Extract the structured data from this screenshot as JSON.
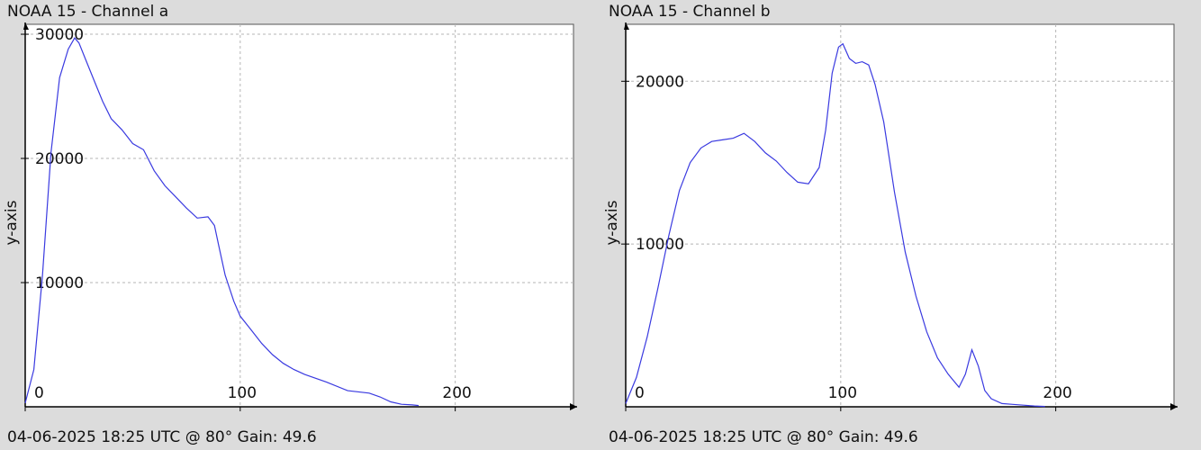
{
  "chart_data": [
    {
      "type": "line",
      "title": "NOAA 15 - Channel a",
      "footer": "04-06-2025 18:25 UTC @ 80° Gain: 49.6",
      "xlabel": "",
      "ylabel": "y-axis",
      "xlim": [
        0,
        255
      ],
      "ylim": [
        0,
        30800
      ],
      "xticks": [
        0,
        100,
        200
      ],
      "yticks": [
        10000,
        20000,
        30000
      ],
      "grid": true,
      "line_color": "#3a3ae0",
      "series": [
        {
          "x": [
            0,
            4,
            8,
            12,
            16,
            20,
            23,
            25,
            28,
            32,
            36,
            40,
            45,
            50,
            55,
            60,
            65,
            70,
            75,
            80,
            85,
            88,
            90,
            93,
            97,
            100,
            105,
            110,
            115,
            120,
            125,
            130,
            140,
            150,
            160,
            165,
            170,
            175,
            180,
            183
          ],
          "y": [
            300,
            3000,
            10500,
            20500,
            26500,
            28800,
            29700,
            29300,
            28000,
            26300,
            24600,
            23200,
            22300,
            21200,
            20700,
            19000,
            17800,
            16900,
            16000,
            15200,
            15300,
            14600,
            13000,
            10600,
            8500,
            7300,
            6200,
            5100,
            4200,
            3500,
            3000,
            2600,
            2000,
            1300,
            1100,
            800,
            400,
            200,
            150,
            100
          ]
        }
      ]
    },
    {
      "type": "line",
      "title": "NOAA 15 - Channel b",
      "footer": "04-06-2025 18:25 UTC @ 80° Gain: 49.6",
      "xlabel": "",
      "ylabel": "y-axis",
      "xlim": [
        0,
        255
      ],
      "ylim": [
        0,
        23500
      ],
      "xticks": [
        0,
        100,
        200
      ],
      "yticks": [
        10000,
        20000
      ],
      "grid": true,
      "line_color": "#3a3ae0",
      "series": [
        {
          "x": [
            0,
            5,
            10,
            15,
            20,
            25,
            30,
            35,
            40,
            45,
            50,
            55,
            60,
            65,
            70,
            75,
            80,
            85,
            90,
            93,
            96,
            99,
            101,
            104,
            107,
            110,
            113,
            116,
            120,
            125,
            130,
            135,
            140,
            145,
            150,
            155,
            158,
            161,
            164,
            167,
            170,
            175,
            180,
            185,
            190,
            195
          ],
          "y": [
            200,
            1800,
            4300,
            7300,
            10500,
            13300,
            15000,
            15900,
            16300,
            16400,
            16500,
            16800,
            16300,
            15600,
            15100,
            14400,
            13800,
            13700,
            14700,
            17000,
            20500,
            22100,
            22300,
            21400,
            21100,
            21200,
            21000,
            19800,
            17500,
            13200,
            9500,
            6800,
            4600,
            3000,
            2000,
            1200,
            2000,
            3500,
            2500,
            1000,
            500,
            200,
            150,
            100,
            50,
            20
          ]
        }
      ]
    }
  ]
}
